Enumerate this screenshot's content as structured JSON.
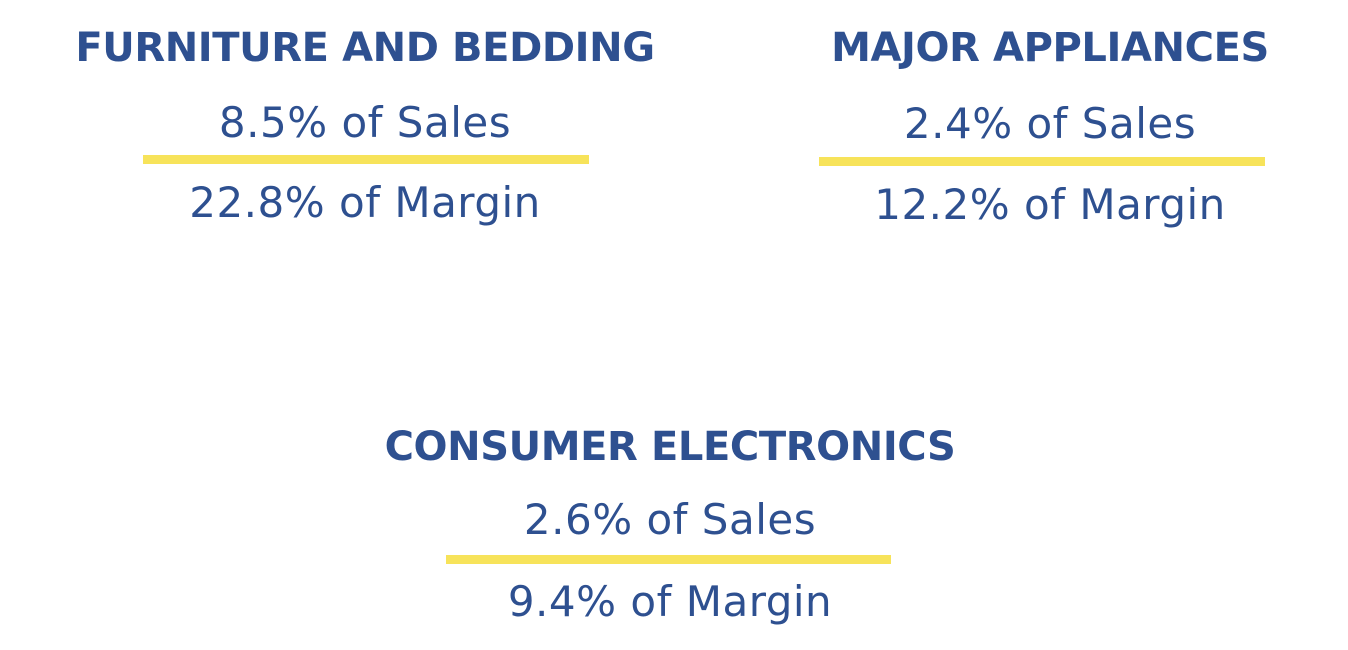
{
  "categories": [
    {
      "title": "FURNITURE AND BEDDING",
      "sales": "8.5% of Sales",
      "sales_pct": 8.5,
      "margin": "22.8% of Margin",
      "margin_pct": 22.8
    },
    {
      "title": "MAJOR APPLIANCES",
      "sales": "2.4% of Sales",
      "sales_pct": 2.4,
      "margin": "12.2% of Margin",
      "margin_pct": 12.2
    },
    {
      "title": "CONSUMER ELECTRONICS",
      "sales": "2.6% of Sales",
      "sales_pct": 2.6,
      "margin": "9.4% of Margin",
      "margin_pct": 9.4
    }
  ],
  "colors": {
    "text": "#2e5090",
    "divider": "#f7e35a",
    "background": "#ffffff"
  }
}
